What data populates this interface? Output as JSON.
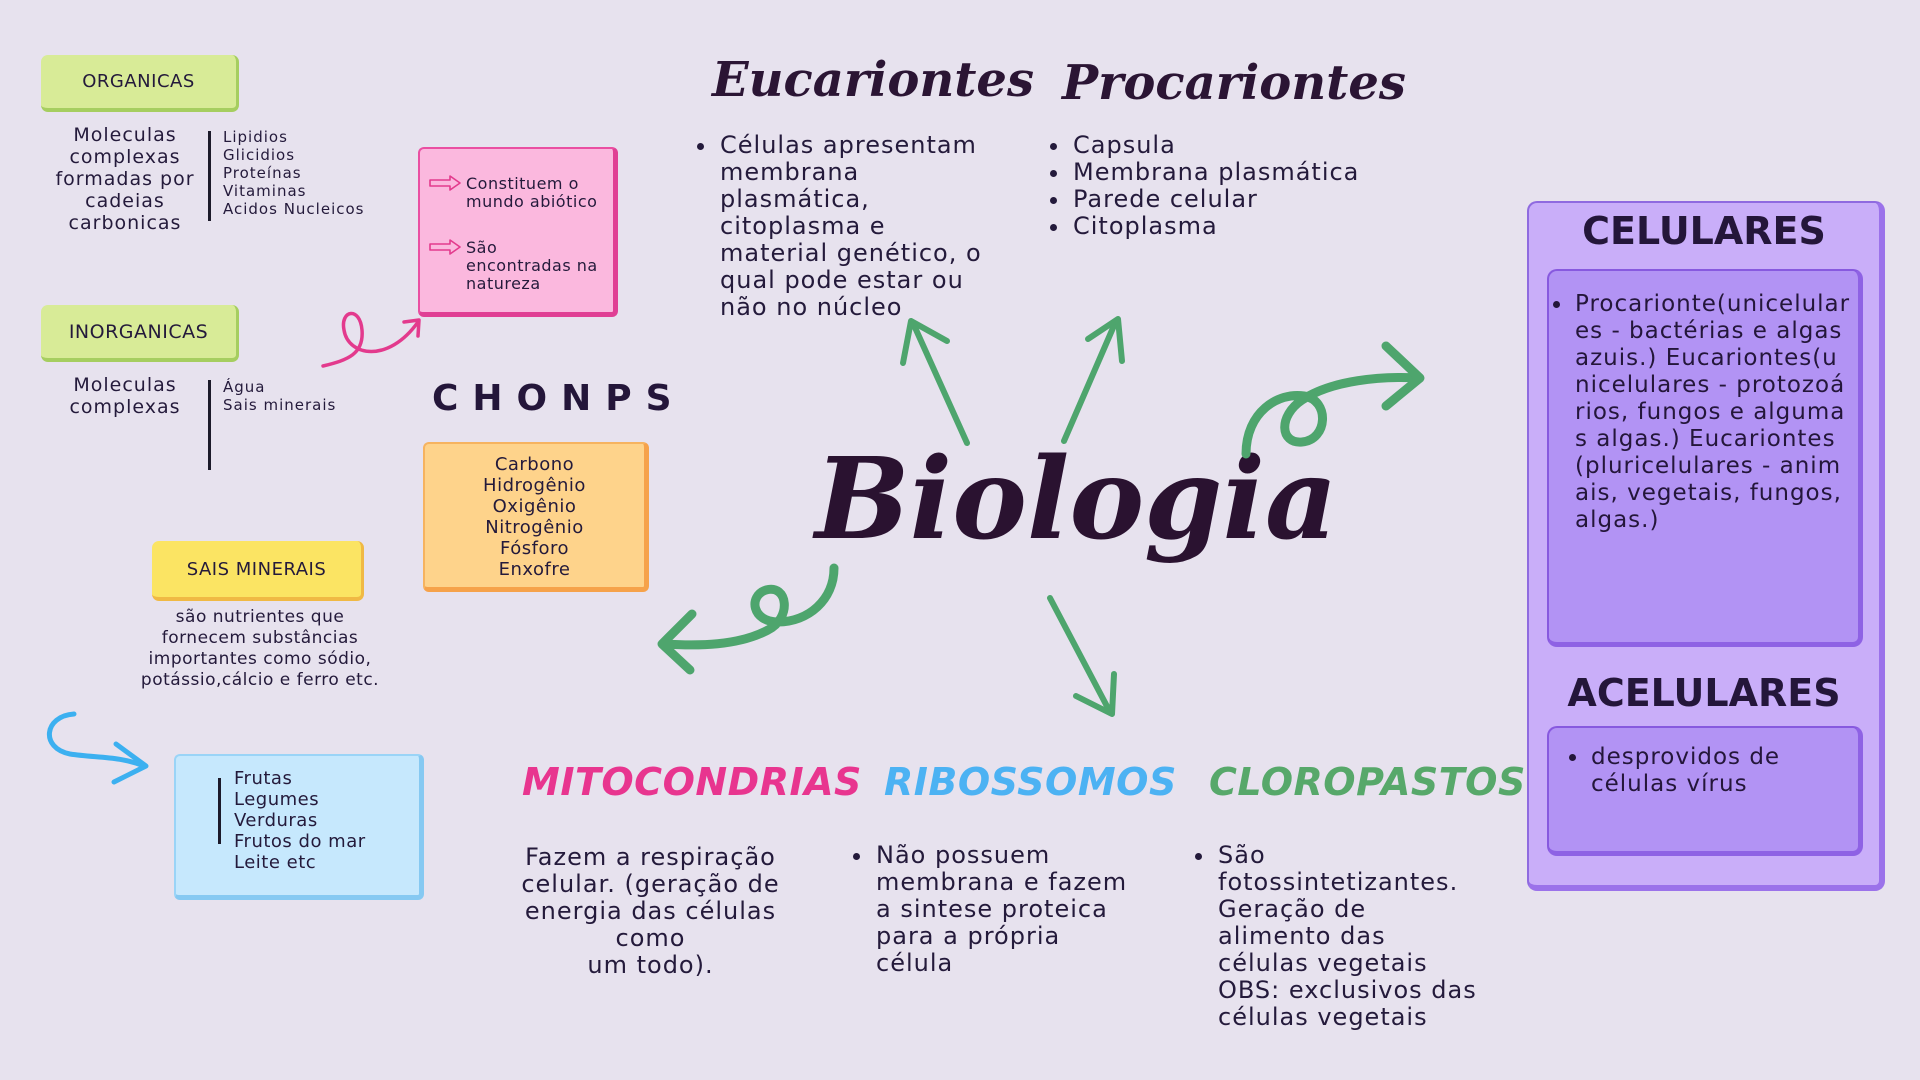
{
  "title": "Biologia",
  "colors": {
    "background": "#e7e2ee",
    "arrow_green": "#4ea56d",
    "mitocondrias": "#e8358f",
    "ribossomos": "#4cb2f3",
    "cloroplastos": "#57a86a",
    "panel_purple": "#c9aef9"
  },
  "left": {
    "organicas": {
      "label": "ORGANICAS",
      "description": [
        "Moleculas",
        "complexas",
        "formadas por",
        "cadeias",
        "carbonicas"
      ],
      "items": [
        "Lipidios",
        "Glicidios",
        "Proteínas",
        "Vitaminas",
        "Acidos Nucleicos"
      ]
    },
    "inorganicas": {
      "label": "INORGANICAS",
      "description": [
        "Moleculas",
        "complexas"
      ],
      "items": [
        "Água",
        "Sais minerais"
      ]
    },
    "pink_box": {
      "items": [
        {
          "icon": "right-arrow-icon",
          "lines": [
            "Constituem o",
            "mundo abiótico"
          ]
        },
        {
          "icon": "right-arrow-icon",
          "lines": [
            "São",
            "encontradas na",
            "natureza"
          ]
        }
      ]
    },
    "chonps": {
      "title": "CHONPS",
      "items": [
        "Carbono",
        "Hidrogênio",
        "Oxigênio",
        "Nitrogênio",
        "Fósforo",
        "Enxofre"
      ]
    },
    "sais_minerais": {
      "label": "SAIS MINERAIS",
      "description": [
        "são nutrientes que",
        "fornecem substâncias",
        "importantes como sódio,",
        "potássio,cálcio e ferro  etc."
      ]
    },
    "foods": {
      "items": [
        "Frutas",
        "Legumes",
        "Verduras",
        "Frutos do mar",
        "Leite etc"
      ]
    }
  },
  "top": {
    "eucariontes": {
      "title": "Eucariontes",
      "bullets": [
        "Células apresentam membrana plasmática, citoplasma e material genético, o qual pode estar ou não no núcleo"
      ]
    },
    "procariontes": {
      "title": "Procariontes",
      "bullets": [
        "Capsula",
        "Membrana plasmática",
        "Parede celular",
        "Citoplasma"
      ]
    }
  },
  "bottom": {
    "mitocondrias": {
      "title": "MITOCONDRIAS",
      "text": [
        "Fazem a respiração",
        "celular. (geração de",
        "energia das células como",
        "um todo)."
      ]
    },
    "ribossomos": {
      "title": "RIBOSSOMOS",
      "bullets": [
        "Não possuem membrana e fazem a sintese proteica para a própria célula"
      ]
    },
    "cloroplastos": {
      "title": "CLOROPASTOS",
      "bullets": [
        "São fotossintetizantes. Geração de alimento das células vegetais OBS: exclusivos das células vegetais"
      ]
    }
  },
  "right_panel": {
    "celulares": {
      "title": "CELULARES",
      "bullets": [
        "Procarionte(unicelulares - bactérias e algas azuis.) Eucariontes(unicelulares - protozoários, fungos e algumas algas.) Eucariontes(pluricelulares - animais, vegetais, fungos, algas.)"
      ]
    },
    "acelulares": {
      "title": "ACELULARES",
      "bullets": [
        "desprovidos de células vírus"
      ]
    }
  }
}
